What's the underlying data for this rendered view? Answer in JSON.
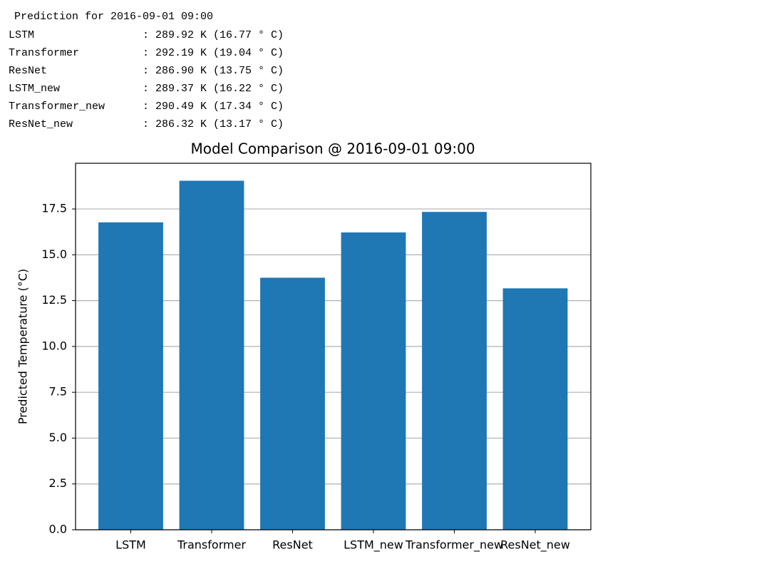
{
  "console": {
    "heading": "Prediction for 2016-09-01 09:00",
    "rows": [
      {
        "model": "LSTM",
        "text": ": 289.92 K (16.77 ° C)"
      },
      {
        "model": "Transformer",
        "text": ": 292.19 K (19.04 ° C)"
      },
      {
        "model": "ResNet",
        "text": ": 286.90 K (13.75 ° C)"
      },
      {
        "model": "LSTM_new",
        "text": ": 289.37 K (16.22 ° C)"
      },
      {
        "model": "Transformer_new",
        "text": ": 290.49 K (17.34 ° C)"
      },
      {
        "model": "ResNet_new",
        "text": ": 286.32 K (13.17 ° C)"
      }
    ]
  },
  "chart_data": {
    "type": "bar",
    "title": "Model Comparison @ 2016-09-01 09:00",
    "y_label": "Predicted Temperature (°C)",
    "categories": [
      "LSTM",
      "Transformer",
      "ResNet",
      "LSTM_new",
      "Transformer_new",
      "ResNet_new"
    ],
    "values": [
      16.77,
      19.04,
      13.75,
      16.22,
      17.34,
      13.17
    ],
    "color": "#1f77b4",
    "ylim": [
      0,
      19.992
    ],
    "yticks": [
      {
        "value": 0,
        "label": "0.0"
      },
      2.5,
      {
        "value": 5,
        "label": "5.0"
      },
      7.5,
      {
        "value": 10,
        "label": "10.0"
      },
      12.5,
      {
        "value": 15,
        "label": "15.0"
      },
      17.5
    ],
    "grid": true
  }
}
